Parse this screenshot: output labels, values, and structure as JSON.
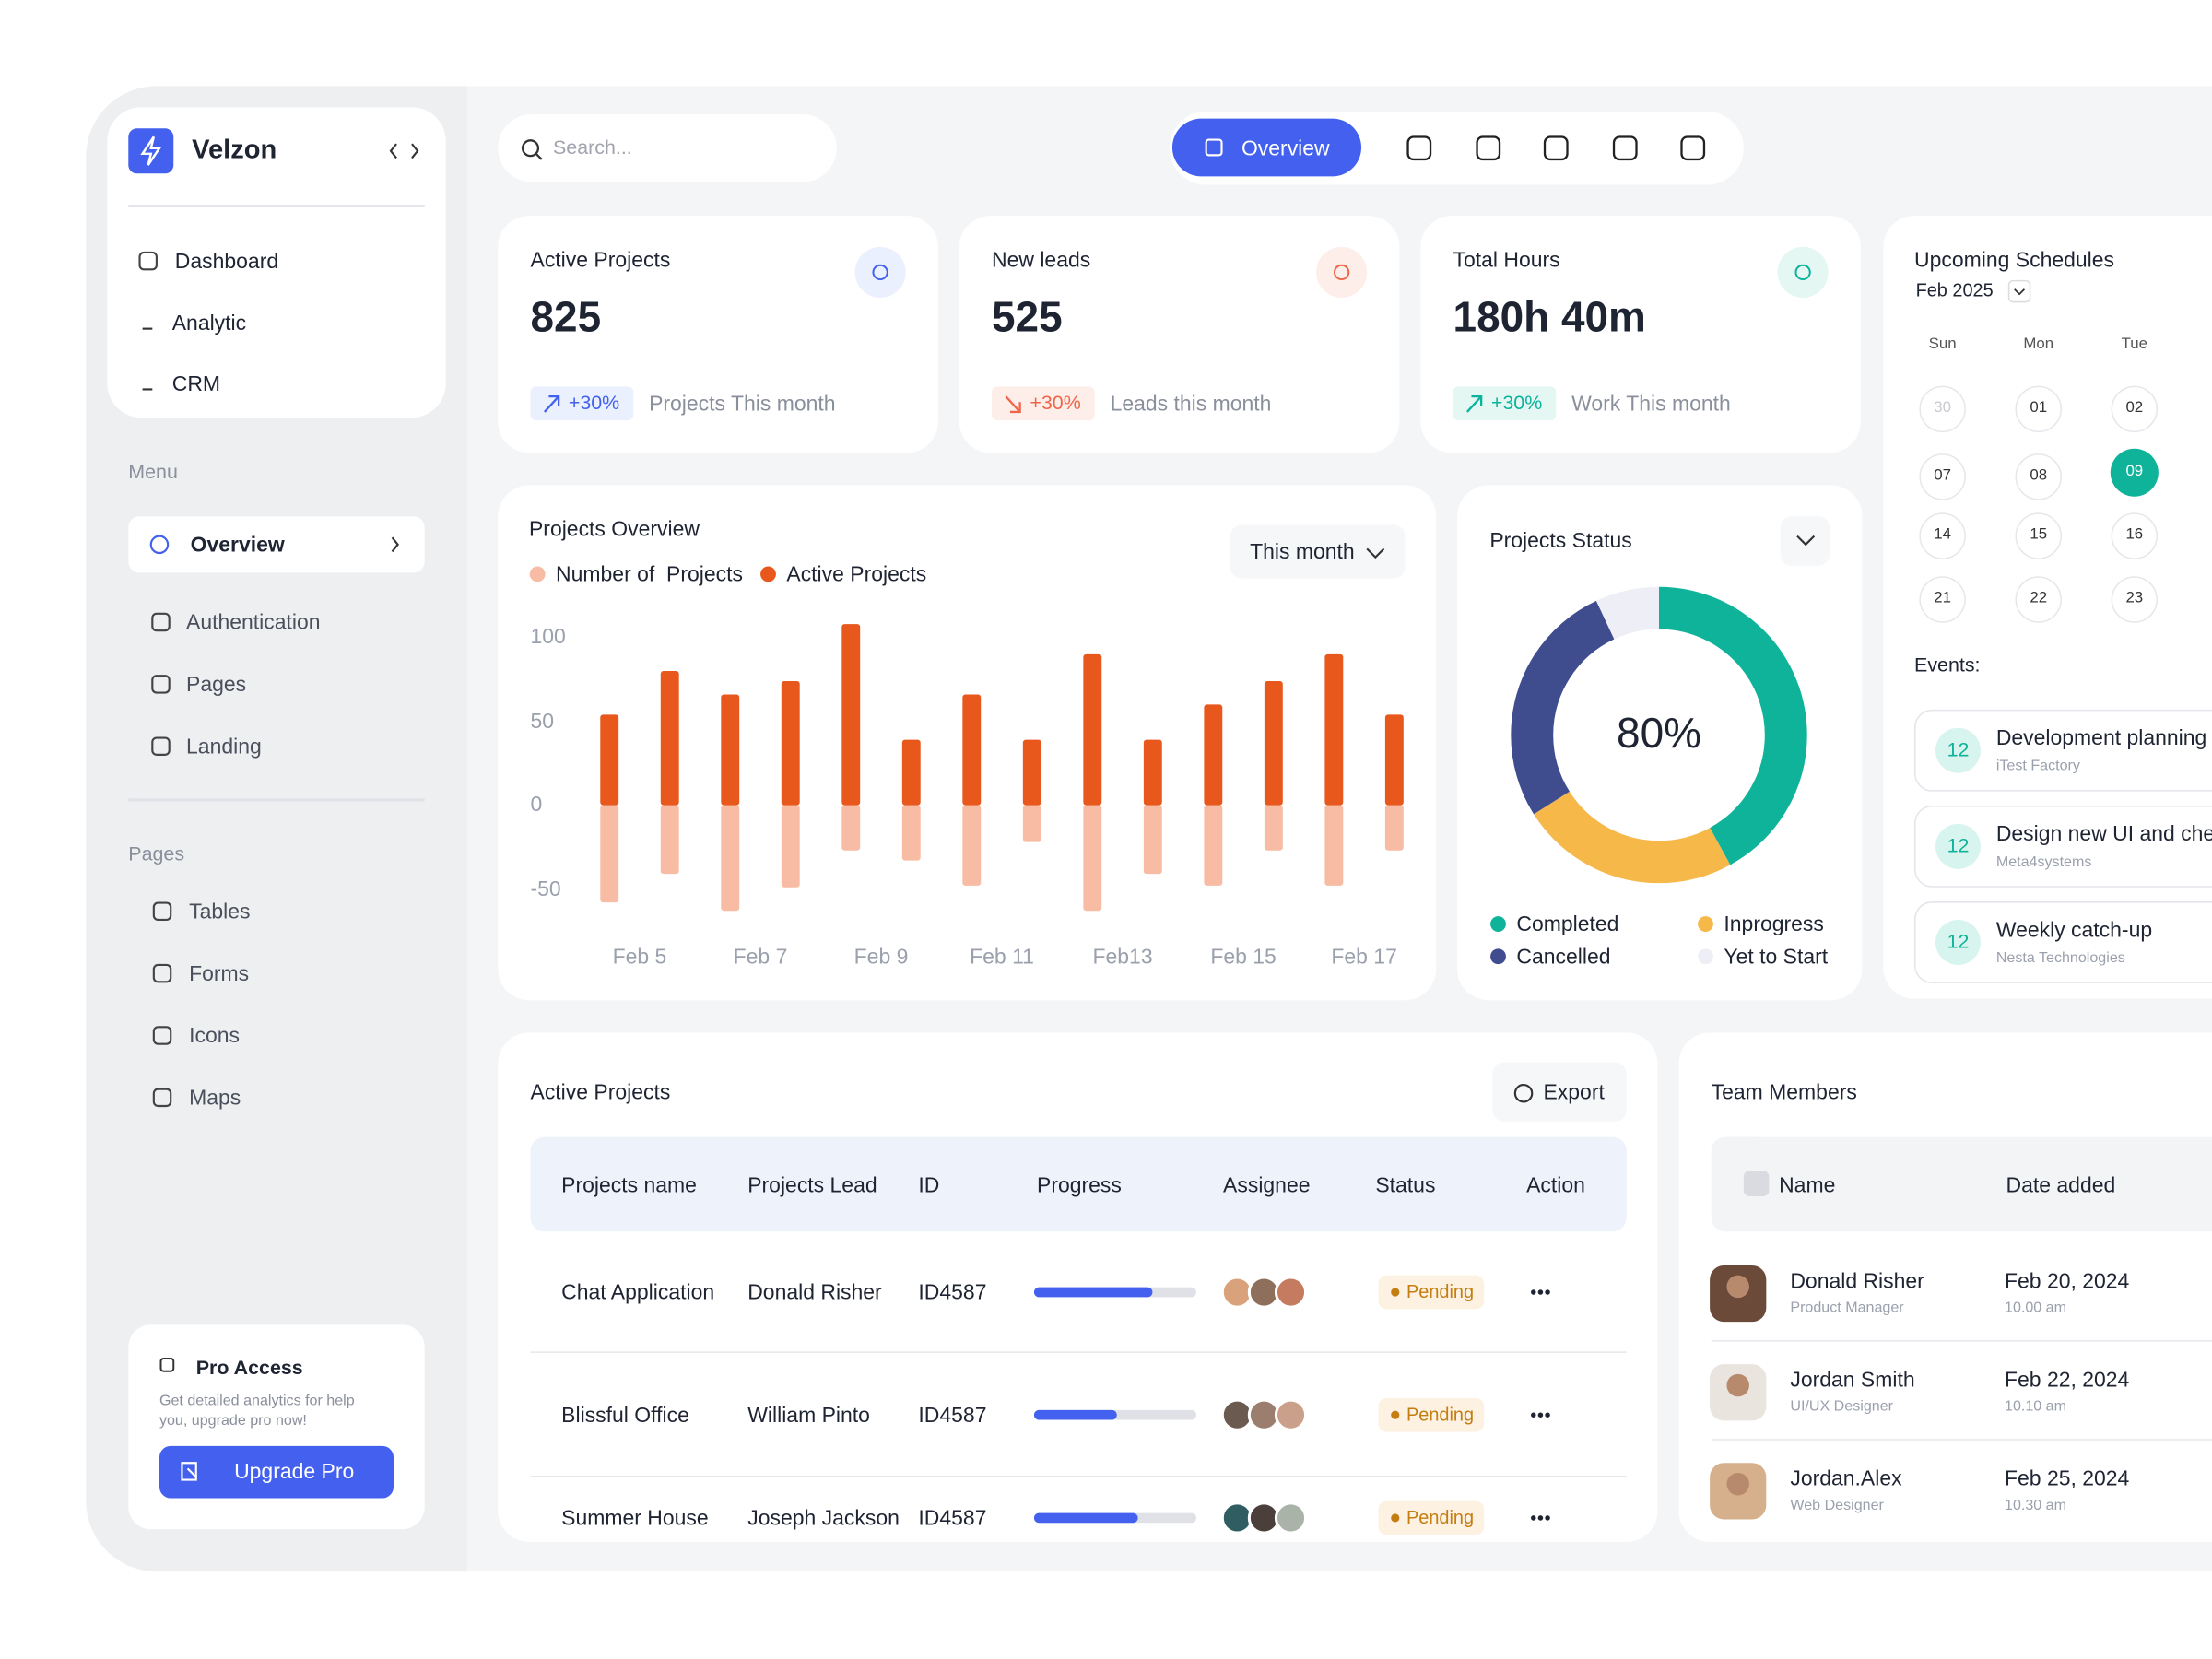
{
  "sidebar": {
    "brand": "Velzon",
    "top_nav": [
      "Dashboard",
      "Analytic",
      "CRM"
    ],
    "menu_label": "Menu",
    "active_item": "Overview",
    "menu_items": [
      "Authentication",
      "Pages",
      "Landing"
    ],
    "pages_label": "Pages",
    "pages_items": [
      "Tables",
      "Forms",
      "Icons",
      "Maps"
    ],
    "pro": {
      "title": "Pro Access",
      "text": [
        "Get detailed analytics for help",
        "you, upgrade pro now!"
      ],
      "button": "Upgrade Pro"
    }
  },
  "topbar": {
    "search_placeholder": "Search...",
    "active_tab": "Overview"
  },
  "stats": [
    {
      "title": "Active Projects",
      "value": 825,
      "change": "+30%",
      "note": "Projects This month",
      "trend": "up",
      "color": "#4361ee",
      "tint": "#eaf0fe"
    },
    {
      "title": "New leads",
      "value": 525,
      "change": "+30%",
      "note": "Leads this month",
      "trend": "down",
      "color": "#f06548",
      "tint": "#fdeeea"
    },
    {
      "title": "Total Hours",
      "value": "180h 40m",
      "change": "+30%",
      "note": "Work This month",
      "trend": "up",
      "color": "#0ab39c",
      "tint": "#e4f7f3"
    }
  ],
  "chart_data": [
    {
      "type": "bar",
      "title": "Projects Overview",
      "filter": "This month",
      "categories": [
        "Feb 5",
        null,
        "Feb 7",
        null,
        "Feb 9",
        null,
        "Feb 11",
        null,
        "Feb13",
        null,
        "Feb 15",
        null,
        "Feb 17",
        null
      ],
      "series": [
        {
          "name": "Number of  Projects",
          "color": "#f7bca3",
          "values": [
            -58,
            -41,
            -63,
            -49,
            -27,
            -33,
            -48,
            -22,
            -63,
            -41,
            -48,
            -27,
            -48,
            -27
          ]
        },
        {
          "name": "Active Projects",
          "color": "#e8581c",
          "values": [
            54,
            80,
            66,
            74,
            108,
            39,
            66,
            39,
            90,
            39,
            60,
            74,
            90,
            54
          ]
        }
      ],
      "ylim": [
        -65,
        110
      ],
      "yticks": [
        -50,
        0,
        50,
        100
      ],
      "grid": false
    },
    {
      "type": "donut",
      "title": "Projects Status",
      "center_label": "80%",
      "categories": [
        "Completed",
        "Inprogress",
        "Cancelled",
        "Yet to Start"
      ],
      "values": [
        42,
        24,
        27,
        7
      ],
      "colors": [
        "#0fb39a",
        "#f5b849",
        "#3f4d8f",
        "#eeeff6"
      ]
    }
  ],
  "schedule": {
    "title": "Upcoming Schedules",
    "month": "Feb 2025",
    "weekdays": [
      "Sun",
      "Mon",
      "Tue"
    ],
    "days": [
      [
        "30",
        "01",
        "02"
      ],
      [
        "07",
        "08",
        "09"
      ],
      [
        "14",
        "15",
        "16"
      ],
      [
        "21",
        "22",
        "23"
      ]
    ],
    "selected": [
      1,
      2
    ],
    "muted": [
      0,
      0
    ],
    "events_label": "Events:",
    "events": [
      {
        "day": "12",
        "title": "Development planning",
        "company": "iTest Factory"
      },
      {
        "day": "12",
        "title": "Design new UI and chec",
        "company": "Meta4systems"
      },
      {
        "day": "12",
        "title": "Weekly catch-up",
        "company": "Nesta Technologies"
      }
    ]
  },
  "projects_table": {
    "title": "Active Projects",
    "export": "Export",
    "columns": [
      "Projects name",
      "Projects Lead",
      "ID",
      "Progress",
      "Assignee",
      "Status",
      "Action"
    ],
    "progress_range": [
      0,
      100
    ],
    "rows": [
      {
        "name": "Chat Application",
        "lead": "Donald Risher",
        "id": "ID4587",
        "progress": 73,
        "status": "Pending"
      },
      {
        "name": "Blissful Office",
        "lead": "William Pinto",
        "id": "ID4587",
        "progress": 51,
        "status": "Pending"
      },
      {
        "name": "Summer House",
        "lead": "Joseph Jackson",
        "id": "ID4587",
        "progress": 64,
        "status": "Pending"
      }
    ]
  },
  "team": {
    "title": "Team Members",
    "columns": [
      "Name",
      "Date added"
    ],
    "members": [
      {
        "name": "Donald Risher",
        "role": "Product Manager",
        "date": "Feb 20, 2024",
        "time": "10.00 am"
      },
      {
        "name": "Jordan Smith",
        "role": "UI/UX Designer",
        "date": "Feb 22, 2024",
        "time": "10.10 am"
      },
      {
        "name": "Jordan.Alex",
        "role": "Web Designer",
        "date": "Feb 25, 2024",
        "time": "10.30 am"
      }
    ]
  }
}
